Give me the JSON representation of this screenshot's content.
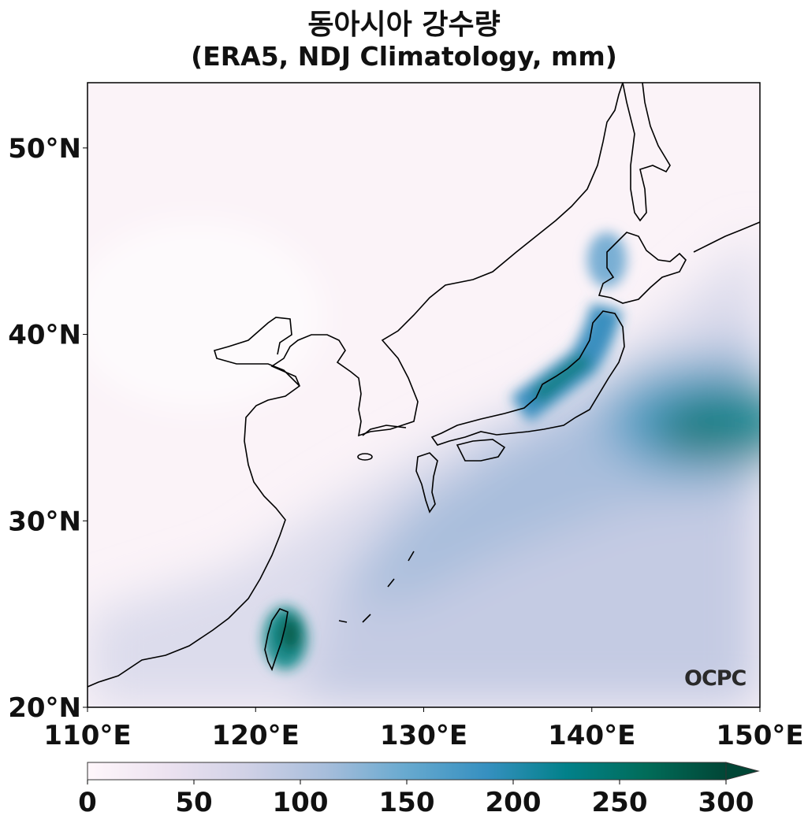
{
  "title": {
    "line1": "동아시아 강수량",
    "line2": "(ERA5, NDJ Climatology, mm)"
  },
  "map": {
    "lon_range": [
      110,
      150
    ],
    "lat_range": [
      20,
      53.5
    ],
    "lon_ticks": [
      {
        "value": 110,
        "label": "110°E"
      },
      {
        "value": 120,
        "label": "120°E"
      },
      {
        "value": 130,
        "label": "130°E"
      },
      {
        "value": 140,
        "label": "140°E"
      },
      {
        "value": 150,
        "label": "150°E"
      }
    ],
    "lat_ticks": [
      {
        "value": 20,
        "label": "20°N"
      },
      {
        "value": 30,
        "label": "30°N"
      },
      {
        "value": 40,
        "label": "40°N"
      },
      {
        "value": 50,
        "label": "50°N"
      }
    ],
    "variable": "precipitation",
    "units": "mm"
  },
  "colorbar": {
    "min": 0,
    "max": 300,
    "extend": "max",
    "ticks": [
      "0",
      "50",
      "100",
      "150",
      "200",
      "250",
      "300"
    ],
    "colors": [
      "#fff7fb",
      "#ece2f0",
      "#d0d1e6",
      "#a6bddb",
      "#67a9cf",
      "#3690c0",
      "#02818a",
      "#016c59",
      "#014636"
    ]
  },
  "logo": {
    "text": "OCPC"
  }
}
